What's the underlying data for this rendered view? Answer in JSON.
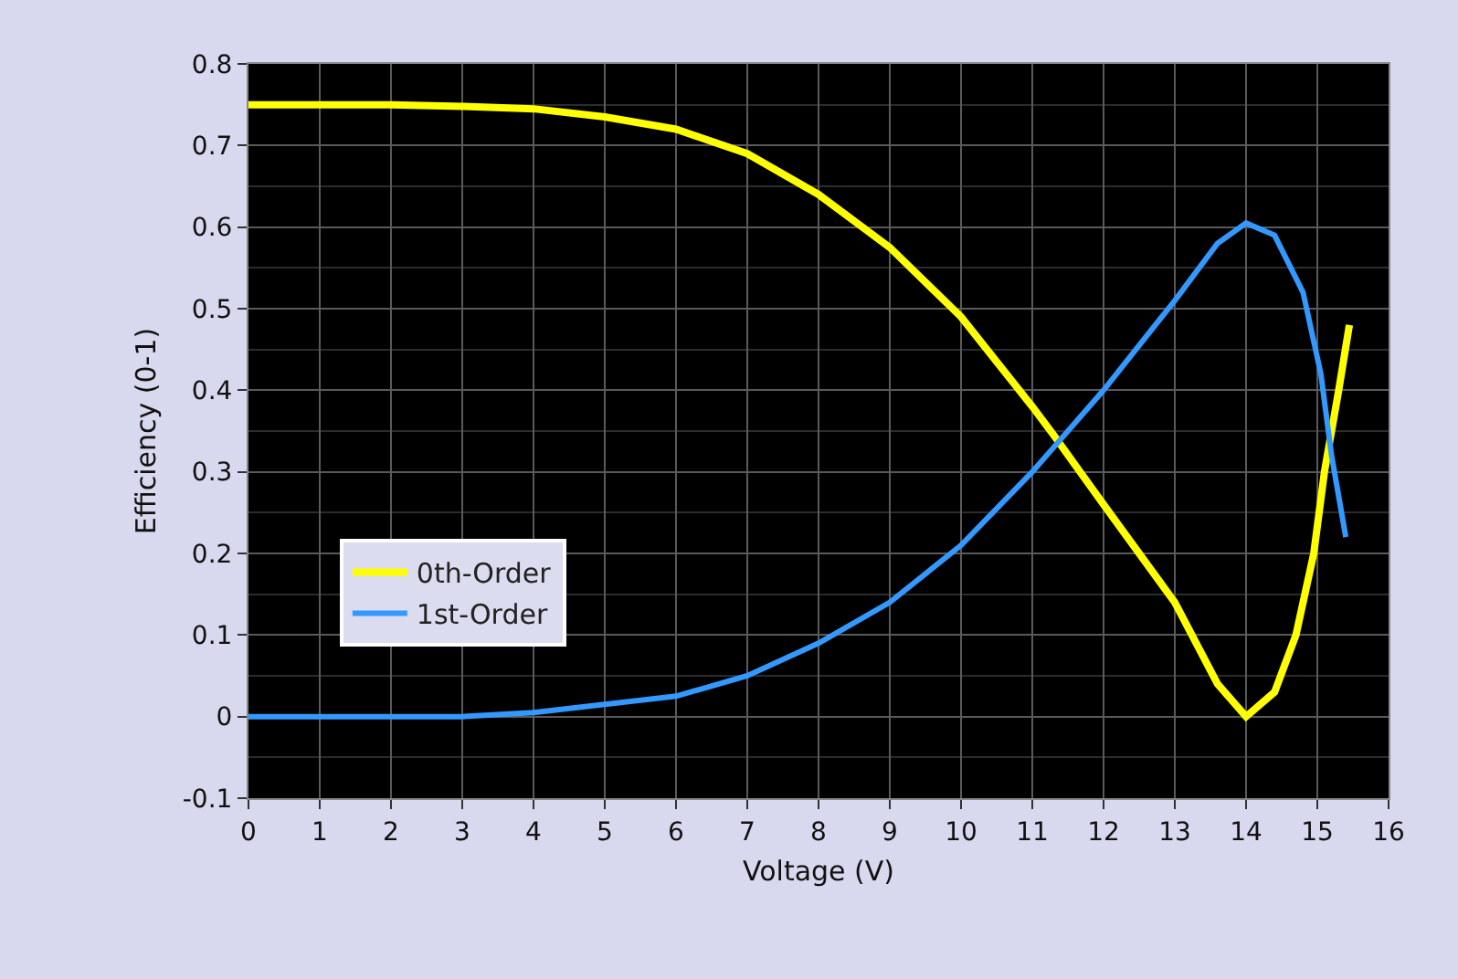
{
  "chart_data": {
    "type": "line",
    "xlabel": "Voltage (V)",
    "ylabel": "Efficiency (0-1)",
    "xlim": [
      0,
      16
    ],
    "xticks": [
      0,
      1,
      2,
      3,
      4,
      5,
      6,
      7,
      8,
      9,
      10,
      11,
      12,
      13,
      14,
      15,
      16
    ],
    "ylim": [
      -0.1,
      0.8
    ],
    "yticks": [
      -0.1,
      0,
      0.1,
      0.2,
      0.3,
      0.4,
      0.5,
      0.6,
      0.7,
      0.8
    ],
    "grid": true,
    "legend": "left",
    "marker": "none",
    "line_style": "solid",
    "series": [
      {
        "name": "0th-Order",
        "color": "#ffff00",
        "x": [
          0,
          1,
          2,
          3,
          4,
          5,
          6,
          7,
          8,
          9,
          10,
          11,
          11.3,
          12,
          13,
          13.6,
          14,
          14.4,
          14.7,
          14.95,
          15.1,
          15.3,
          15.45
        ],
        "values": [
          0.75,
          0.75,
          0.75,
          0.748,
          0.745,
          0.735,
          0.72,
          0.69,
          0.64,
          0.575,
          0.49,
          0.38,
          0.345,
          0.26,
          0.14,
          0.04,
          0,
          0.03,
          0.1,
          0.2,
          0.3,
          0.4,
          0.48
        ]
      },
      {
        "name": "1st-Order",
        "color": "#3399ff",
        "x": [
          0,
          1,
          2,
          3,
          4,
          5,
          6,
          7,
          8,
          9,
          10,
          11,
          11.3,
          12,
          13,
          13.6,
          14,
          14.4,
          14.8,
          15.05,
          15.2,
          15.4
        ],
        "values": [
          0,
          0,
          0,
          0,
          0.005,
          0.015,
          0.025,
          0.05,
          0.09,
          0.14,
          0.21,
          0.3,
          0.33,
          0.4,
          0.51,
          0.58,
          0.605,
          0.59,
          0.52,
          0.42,
          0.32,
          0.22
        ]
      }
    ]
  }
}
